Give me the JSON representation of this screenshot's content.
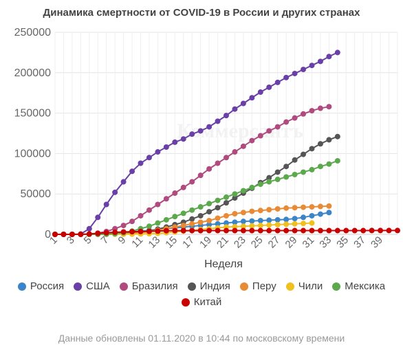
{
  "chart_data": {
    "type": "line",
    "title": "Динамика смертности от COVID-19 в России и других странах",
    "xlabel": "Неделя",
    "ylabel": "",
    "xlim": [
      1,
      41
    ],
    "ylim": [
      0,
      250000
    ],
    "y_ticks": [
      "0",
      "50000",
      "100000",
      "150000",
      "200000",
      "250000"
    ],
    "x_ticks": [
      "1",
      "3",
      "5",
      "7",
      "9",
      "11",
      "13",
      "15",
      "17",
      "19",
      "21",
      "23",
      "25",
      "27",
      "29",
      "31",
      "33",
      "35",
      "37",
      "39"
    ],
    "grid": true,
    "legend_position": "bottom",
    "watermark": "Коммерсантъ",
    "series": [
      {
        "name": "Россия",
        "color": "#3a85c8",
        "values": [
          0,
          0,
          0,
          0,
          50,
          200,
          600,
          1200,
          2000,
          3000,
          4000,
          5000,
          6000,
          7000,
          8000,
          9000,
          10000,
          11000,
          12000,
          13000,
          14000,
          15000,
          16000,
          16500,
          17000,
          17500,
          18000,
          18500,
          19500,
          21000,
          23000,
          25000,
          27000
        ]
      },
      {
        "name": "США",
        "color": "#6a40a8",
        "values": [
          0,
          0,
          0,
          400,
          7000,
          21000,
          37000,
          52000,
          65000,
          78000,
          88000,
          95000,
          102000,
          108000,
          114000,
          118000,
          124000,
          128000,
          133000,
          140000,
          147000,
          155000,
          162000,
          169000,
          176000,
          182000,
          188000,
          194000,
          199000,
          204000,
          209000,
          214000,
          220000,
          225000
        ]
      },
      {
        "name": "Бразилия",
        "color": "#b04a7f",
        "values": [
          0,
          0,
          0,
          0,
          200,
          1500,
          3500,
          7000,
          11000,
          16000,
          23000,
          30000,
          37000,
          44000,
          51000,
          58000,
          65000,
          73000,
          81000,
          88000,
          95000,
          102000,
          109000,
          116000,
          122000,
          128000,
          133000,
          139000,
          144000,
          149000,
          153000,
          156000,
          158000
        ]
      },
      {
        "name": "Индия",
        "color": "#555555",
        "values": [
          0,
          0,
          0,
          0,
          0,
          100,
          200,
          500,
          800,
          1500,
          2500,
          4000,
          6500,
          9000,
          12000,
          15000,
          19000,
          23000,
          28000,
          33000,
          39000,
          45000,
          51000,
          57000,
          64000,
          70000,
          77000,
          84000,
          92000,
          99000,
          106000,
          112000,
          117000,
          121000
        ]
      },
      {
        "name": "Перу",
        "color": "#e88b34",
        "values": [
          0,
          0,
          0,
          0,
          0,
          50,
          150,
          300,
          600,
          1000,
          2000,
          3500,
          5000,
          7000,
          9000,
          11000,
          13000,
          15000,
          17000,
          20000,
          23000,
          25500,
          27000,
          28500,
          29500,
          30500,
          31500,
          32500,
          33000,
          33500,
          34000,
          34500,
          35000
        ]
      },
      {
        "name": "Чили",
        "color": "#f0c020",
        "values": [
          0,
          0,
          0,
          0,
          0,
          0,
          50,
          100,
          200,
          300,
          500,
          800,
          1200,
          2000,
          3000,
          4000,
          5000,
          6000,
          7000,
          8000,
          9000,
          9500,
          10000,
          10500,
          11000,
          11500,
          12000,
          12500,
          13000,
          13500,
          14000
        ]
      },
      {
        "name": "Мексика",
        "color": "#5ba84d",
        "values": [
          0,
          0,
          0,
          0,
          0,
          100,
          300,
          800,
          2000,
          4000,
          7000,
          10000,
          14000,
          18000,
          22000,
          26000,
          30000,
          34000,
          38000,
          42000,
          46000,
          50000,
          54000,
          58000,
          62000,
          65000,
          68000,
          71000,
          74000,
          77000,
          80000,
          84000,
          87000,
          91000
        ]
      },
      {
        "name": "Китай",
        "color": "#c80000",
        "values": [
          0,
          0,
          0,
          100,
          500,
          1200,
          2000,
          2500,
          3000,
          3300,
          3500,
          3700,
          4000,
          4500,
          4600,
          4600,
          4600,
          4600,
          4630,
          4630,
          4630,
          4630,
          4630,
          4640,
          4640,
          4640,
          4640,
          4640,
          4640,
          4640,
          4640,
          4640,
          4640,
          4640,
          4640,
          4640,
          4640,
          4740,
          4740,
          4740,
          4740
        ]
      }
    ]
  },
  "footer": {
    "note": "Данные обновлены 01.11.2020 в 10:44 по московскому времени"
  }
}
